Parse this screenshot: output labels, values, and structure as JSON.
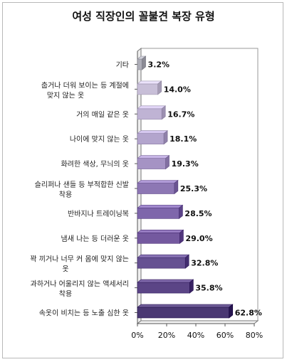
{
  "chart_data": {
    "type": "bar",
    "orientation": "horizontal",
    "title": "여성 직장인의 꼴불견 복장 유형",
    "categories": [
      "기타",
      "춥거나 더워 보이는 등 계절에 맞지 않는 옷",
      "거의 매일 같은 옷",
      "나이에 맞지 않는 옷",
      "화려한 색상, 무늬의 옷",
      "슬리퍼나 샌들 등 부적합한 신발 착용",
      "반바지나 트레이닝복",
      "냄새 나는 등 더러운 옷",
      "꽉 끼거나 너무 커 몸에 맞지 않는 옷",
      "과하거나 어울리지 않는 액세서리 착용",
      "속옷이 비치는 등 노출 심한 옷"
    ],
    "category_lines": [
      [
        "기타"
      ],
      [
        "춥거나 더워 보이는 등 계절에",
        "맞지 않는 옷"
      ],
      [
        "거의 매일 같은 옷"
      ],
      [
        "나이에 맞지 않는 옷"
      ],
      [
        "화려한 색상, 무늬의 옷"
      ],
      [
        "슬리퍼나 샌들 등 부적합한 신발",
        "착용"
      ],
      [
        "반바지나 트레이닝복"
      ],
      [
        "냄새 나는 등 더러운 옷"
      ],
      [
        "꽉 끼거나 너무 커 몸에 맞지 않는",
        "옷"
      ],
      [
        "과하거나 어울리지 않는 액세서리",
        "착용"
      ],
      [
        "속옷이 비치는 등 노출 심한 옷"
      ]
    ],
    "values": [
      3.2,
      14.0,
      16.7,
      18.1,
      19.3,
      25.3,
      28.5,
      29.0,
      32.8,
      35.8,
      62.8
    ],
    "value_labels": [
      "3.2%",
      "14.0%",
      "16.7%",
      "18.1%",
      "19.3%",
      "25.3%",
      "28.5%",
      "29.0%",
      "32.8%",
      "35.8%",
      "62.8%"
    ],
    "xlim": [
      0,
      80
    ],
    "xticks": [
      0,
      20,
      40,
      60,
      80
    ],
    "xtick_labels": [
      "0%",
      "20%",
      "40%",
      "60%",
      "80%"
    ],
    "bar_colors": [
      "#aeaeb8",
      "#c8bfd8",
      "#bfb3d4",
      "#b3a5cd",
      "#a593c4",
      "#8d77b4",
      "#7e66ab",
      "#74599f",
      "#665192",
      "#5b4586",
      "#4a3873"
    ],
    "grid": false,
    "legend": "none"
  }
}
